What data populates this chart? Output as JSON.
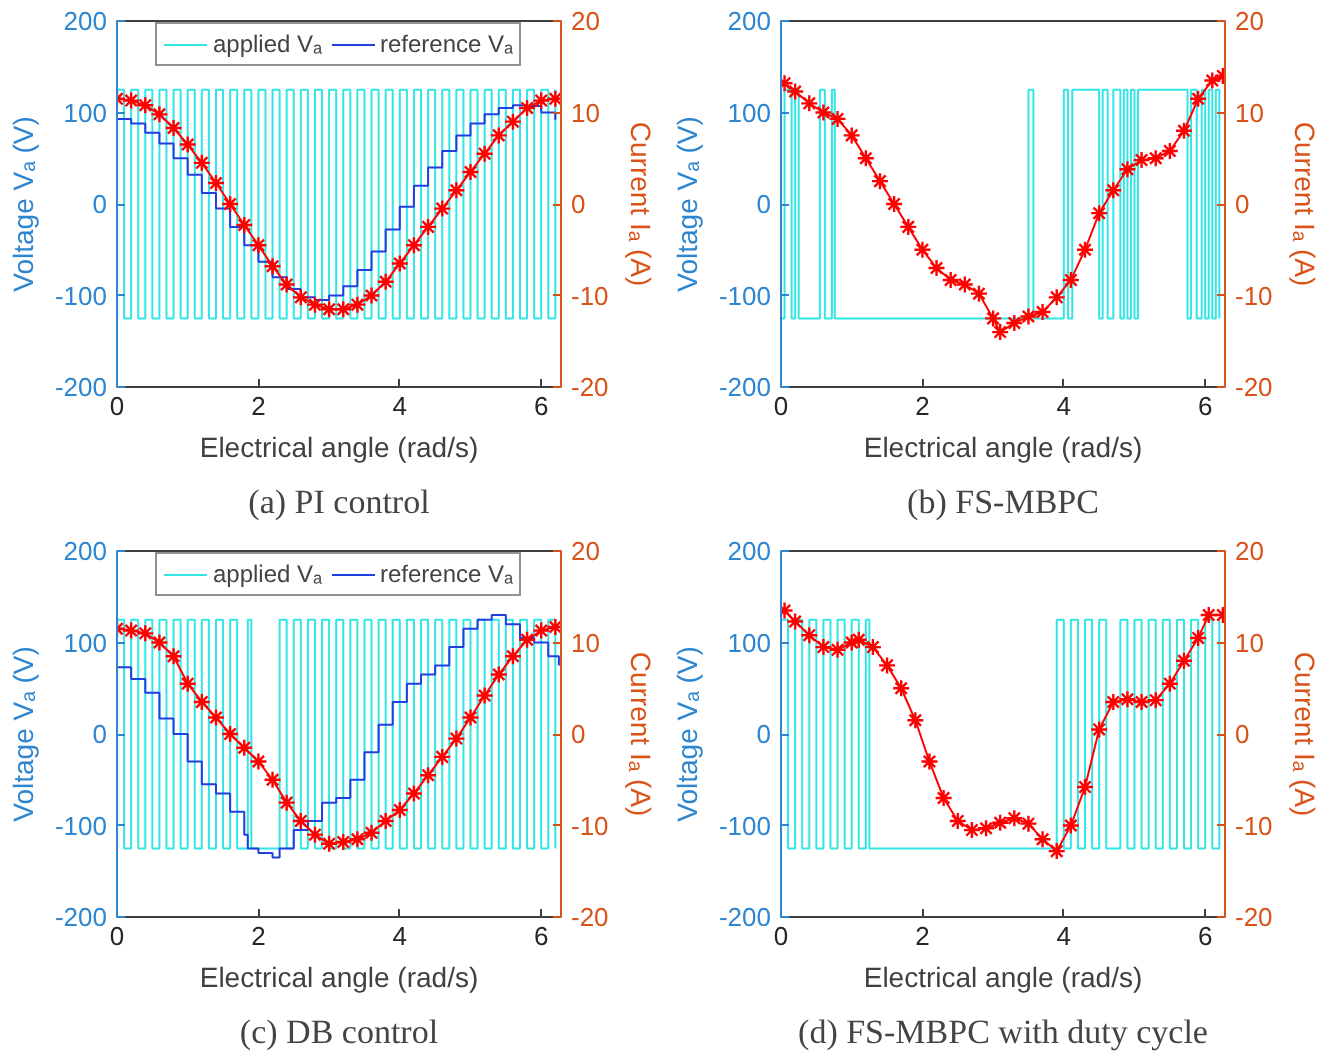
{
  "chart_data": [
    {
      "type": "line",
      "title": "(a) PI control",
      "xlabel": "Electrical angle (rad/s)",
      "ylabel": "Voltage Vₐ (V)",
      "y2label": "Current Iₐ (A)",
      "xlim": [
        0,
        6.28
      ],
      "xticks": [
        0,
        2,
        4,
        6
      ],
      "ylim": [
        -200,
        200
      ],
      "yticks": [
        -200,
        -100,
        0,
        100,
        200
      ],
      "y2lim": [
        -20,
        20
      ],
      "y2ticks": [
        -20,
        -10,
        0,
        10,
        20
      ],
      "legend": "top",
      "grid": false,
      "series": [
        {
          "name": "applied Vₐ",
          "type": "step",
          "color": "#33e6e6",
          "marker": "none",
          "x": [
            0,
            0.1,
            0.2,
            0.3,
            0.4,
            0.5,
            0.6,
            0.7,
            0.8,
            0.9,
            1.0,
            1.1,
            1.2,
            1.3,
            1.4,
            1.5,
            1.6,
            1.7,
            1.8,
            1.9,
            2.0,
            2.1,
            2.2,
            2.3,
            2.4,
            2.5,
            2.6,
            2.7,
            2.8,
            2.9,
            3.0,
            3.1,
            3.2,
            3.3,
            3.4,
            3.5,
            3.6,
            3.7,
            3.8,
            3.9,
            4.0,
            4.1,
            4.2,
            4.3,
            4.4,
            4.5,
            4.6,
            4.7,
            4.8,
            4.9,
            5.0,
            5.1,
            5.2,
            5.3,
            5.4,
            5.5,
            5.6,
            5.7,
            5.8,
            5.9,
            6.0,
            6.1,
            6.2
          ],
          "values": [
            125,
            -125,
            125,
            -125,
            125,
            -125,
            125,
            -125,
            125,
            -125,
            125,
            -125,
            125,
            -125,
            125,
            -125,
            125,
            -125,
            125,
            -125,
            125,
            -125,
            125,
            -125,
            125,
            -125,
            125,
            -125,
            125,
            -125,
            125,
            -125,
            125,
            -125,
            125,
            -125,
            125,
            -125,
            125,
            -125,
            125,
            -125,
            125,
            -125,
            125,
            -125,
            125,
            -125,
            125,
            -125,
            125,
            -125,
            125,
            -125,
            125,
            -125,
            125,
            -125,
            125,
            -125,
            125,
            -125,
            125
          ]
        },
        {
          "name": "reference Vₐ",
          "type": "step",
          "color": "#1f3fe0",
          "marker": "none",
          "x": [
            0,
            0.2,
            0.4,
            0.6,
            0.8,
            1.0,
            1.2,
            1.4,
            1.6,
            1.8,
            2.0,
            2.2,
            2.4,
            2.6,
            2.8,
            3.0,
            3.2,
            3.4,
            3.6,
            3.8,
            4.0,
            4.2,
            4.4,
            4.6,
            4.8,
            5.0,
            5.2,
            5.4,
            5.6,
            5.8,
            6.0,
            6.2
          ],
          "values": [
            93,
            88,
            78,
            66,
            50,
            32,
            12,
            -5,
            -25,
            -45,
            -63,
            -80,
            -93,
            -102,
            -105,
            -100,
            -90,
            -72,
            -52,
            -28,
            -3,
            20,
            40,
            58,
            75,
            88,
            98,
            105,
            108,
            107,
            100,
            92
          ]
        },
        {
          "axis": "y2",
          "color": "#ff0000",
          "marker": "cross",
          "line_style": "solid",
          "x": [
            0,
            0.2,
            0.4,
            0.6,
            0.8,
            1.0,
            1.2,
            1.4,
            1.6,
            1.8,
            2.0,
            2.2,
            2.4,
            2.6,
            2.8,
            3.0,
            3.2,
            3.4,
            3.6,
            3.8,
            4.0,
            4.2,
            4.4,
            4.6,
            4.8,
            5.0,
            5.2,
            5.4,
            5.6,
            5.8,
            6.0,
            6.2
          ],
          "values": [
            11.5,
            11.3,
            10.8,
            9.8,
            8.3,
            6.5,
            4.5,
            2.3,
            0,
            -2.3,
            -4.5,
            -6.8,
            -8.8,
            -10.2,
            -11,
            -11.5,
            -11.5,
            -11,
            -10,
            -8.5,
            -6.5,
            -4.5,
            -2.5,
            -0.5,
            1.5,
            3.5,
            5.5,
            7.5,
            9,
            10.5,
            11.3,
            11.5
          ]
        }
      ]
    },
    {
      "type": "line",
      "title": "(b) FS-MBPC",
      "xlabel": "Electrical angle (rad/s)",
      "ylabel": "Voltage Vₐ (V)",
      "y2label": "Current Iₐ (A)",
      "xlim": [
        0,
        6.28
      ],
      "xticks": [
        0,
        2,
        4,
        6
      ],
      "ylim": [
        -200,
        200
      ],
      "yticks": [
        -200,
        -100,
        0,
        100,
        200
      ],
      "y2lim": [
        -20,
        20
      ],
      "y2ticks": [
        -20,
        -10,
        0,
        10,
        20
      ],
      "legend": false,
      "grid": false,
      "series": [
        {
          "type": "step",
          "color": "#33e6e6",
          "marker": "none",
          "x": [
            0,
            0.05,
            0.15,
            0.2,
            0.25,
            0.55,
            0.62,
            0.72,
            0.76,
            3.5,
            3.57,
            4.0,
            4.06,
            4.12,
            4.5,
            4.55,
            4.62,
            4.7,
            4.8,
            4.85,
            4.9,
            4.95,
            5.0,
            5.05,
            5.75,
            5.8,
            5.88,
            5.95,
            6.0,
            6.05,
            6.1,
            6.15,
            6.2
          ],
          "values": [
            -125,
            125,
            -125,
            125,
            -125,
            125,
            -125,
            125,
            -125,
            125,
            -125,
            125,
            -125,
            125,
            -125,
            125,
            -125,
            125,
            -125,
            125,
            -125,
            125,
            -125,
            125,
            -125,
            125,
            -125,
            125,
            -125,
            125,
            -125,
            125,
            -125
          ]
        },
        {
          "axis": "y2",
          "color": "#ff0000",
          "marker": "cross",
          "line_style": "solid",
          "x": [
            0.05,
            0.2,
            0.4,
            0.6,
            0.8,
            1.0,
            1.2,
            1.4,
            1.6,
            1.8,
            2.0,
            2.2,
            2.4,
            2.6,
            2.8,
            3.0,
            3.1,
            3.3,
            3.5,
            3.7,
            3.9,
            4.1,
            4.3,
            4.5,
            4.7,
            4.9,
            5.1,
            5.3,
            5.5,
            5.7,
            5.9,
            6.1,
            6.25
          ],
          "values": [
            13.2,
            12.3,
            11,
            10,
            9.3,
            7.5,
            5,
            2.5,
            0,
            -2.5,
            -5,
            -7,
            -8.3,
            -8.8,
            -9.8,
            -12.5,
            -14,
            -13,
            -12.3,
            -11.8,
            -10.2,
            -8.3,
            -5,
            -1,
            1.5,
            3.8,
            4.8,
            5,
            5.8,
            8,
            11.5,
            13.5,
            14
          ]
        }
      ]
    },
    {
      "type": "line",
      "title": "(c) DB control",
      "xlabel": "Electrical angle (rad/s)",
      "ylabel": "Voltage Vₐ (V)",
      "y2label": "Current Iₐ (A)",
      "xlim": [
        0,
        6.28
      ],
      "xticks": [
        0,
        2,
        4,
        6
      ],
      "ylim": [
        -200,
        200
      ],
      "yticks": [
        -200,
        -100,
        0,
        100,
        200
      ],
      "y2lim": [
        -20,
        20
      ],
      "y2ticks": [
        -20,
        -10,
        0,
        10,
        20
      ],
      "legend": "top",
      "grid": false,
      "series": [
        {
          "name": "applied Vₐ",
          "type": "step",
          "color": "#33e6e6",
          "marker": "none",
          "x": [
            0,
            0.1,
            0.2,
            0.3,
            0.4,
            0.5,
            0.6,
            0.7,
            0.8,
            0.9,
            1.0,
            1.1,
            1.2,
            1.3,
            1.4,
            1.5,
            1.6,
            1.7,
            1.85,
            1.9,
            2.3,
            2.4,
            2.5,
            2.6,
            2.7,
            2.8,
            2.9,
            3.0,
            3.1,
            3.2,
            3.3,
            3.4,
            3.5,
            3.6,
            3.7,
            3.8,
            3.9,
            4.0,
            4.1,
            4.2,
            4.3,
            4.4,
            4.5,
            4.6,
            4.7,
            4.8,
            4.9,
            5.0,
            5.1,
            5.2,
            5.3,
            5.4,
            5.5,
            5.6,
            5.7,
            5.8,
            5.9,
            6.0,
            6.1,
            6.2
          ],
          "values": [
            125,
            -125,
            125,
            -125,
            125,
            -125,
            125,
            -125,
            125,
            -125,
            125,
            -125,
            125,
            -125,
            125,
            -125,
            125,
            -125,
            125,
            -125,
            125,
            -125,
            125,
            -125,
            125,
            -125,
            125,
            -125,
            125,
            -125,
            125,
            -125,
            125,
            -125,
            125,
            -125,
            125,
            -125,
            125,
            -125,
            125,
            -125,
            125,
            -125,
            125,
            -125,
            125,
            -125,
            125,
            -125,
            125,
            -125,
            125,
            -125,
            125,
            -125,
            125,
            -125,
            125,
            -125
          ]
        },
        {
          "name": "reference Vₐ",
          "type": "step",
          "color": "#1f3fe0",
          "marker": "none",
          "x": [
            0,
            0.2,
            0.4,
            0.6,
            0.8,
            1.0,
            1.2,
            1.4,
            1.6,
            1.8,
            1.85,
            2.0,
            2.2,
            2.3,
            2.5,
            2.7,
            2.9,
            3.1,
            3.3,
            3.5,
            3.7,
            3.9,
            4.1,
            4.3,
            4.5,
            4.7,
            4.9,
            5.1,
            5.3,
            5.5,
            5.7,
            5.9,
            6.1,
            6.25
          ],
          "values": [
            73,
            60,
            45,
            17,
            0,
            -30,
            -55,
            -65,
            -85,
            -110,
            -125,
            -130,
            -135,
            -125,
            -105,
            -95,
            -75,
            -70,
            -50,
            -20,
            10,
            35,
            55,
            65,
            75,
            95,
            115,
            125,
            130,
            120,
            105,
            100,
            85,
            75
          ]
        },
        {
          "axis": "y2",
          "color": "#ff0000",
          "marker": "cross",
          "line_style": "solid",
          "x": [
            0,
            0.2,
            0.4,
            0.6,
            0.8,
            1.0,
            1.2,
            1.4,
            1.6,
            1.8,
            2.0,
            2.2,
            2.4,
            2.6,
            2.8,
            3.0,
            3.2,
            3.4,
            3.6,
            3.8,
            4.0,
            4.2,
            4.4,
            4.6,
            4.8,
            5.0,
            5.2,
            5.4,
            5.6,
            5.8,
            6.0,
            6.2
          ],
          "values": [
            11.5,
            11.3,
            11,
            10,
            8.5,
            5.5,
            3.5,
            1.8,
            0,
            -1.5,
            -3,
            -5,
            -7.5,
            -9.5,
            -11,
            -12,
            -11.8,
            -11.5,
            -10.8,
            -9.5,
            -8.3,
            -6.5,
            -4.5,
            -2.5,
            -0.5,
            1.8,
            4.2,
            6.5,
            8.5,
            10.3,
            11.3,
            11.7
          ]
        }
      ]
    },
    {
      "type": "line",
      "title": "(d) FS-MBPC with duty cycle",
      "xlabel": "Electrical angle (rad/s)",
      "ylabel": "Voltage Vₐ (V)",
      "y2label": "Current Iₐ (A)",
      "xlim": [
        0,
        6.28
      ],
      "xticks": [
        0,
        2,
        4,
        6
      ],
      "ylim": [
        -200,
        200
      ],
      "yticks": [
        -200,
        -100,
        0,
        100,
        200
      ],
      "y2lim": [
        -20,
        20
      ],
      "y2ticks": [
        -20,
        -10,
        0,
        10,
        20
      ],
      "legend": false,
      "grid": false,
      "series": [
        {
          "type": "step",
          "color": "#33e6e6",
          "marker": "none",
          "x": [
            0,
            0.1,
            0.2,
            0.3,
            0.4,
            0.5,
            0.6,
            0.7,
            0.8,
            0.9,
            1.0,
            1.1,
            1.2,
            1.25,
            3.9,
            4.0,
            4.1,
            4.2,
            4.3,
            4.4,
            4.5,
            4.6,
            4.8,
            4.9,
            5.0,
            5.1,
            5.2,
            5.3,
            5.4,
            5.5,
            5.6,
            5.7,
            5.8,
            5.9,
            6.0,
            6.1,
            6.2
          ],
          "values": [
            125,
            -125,
            125,
            -125,
            125,
            -125,
            125,
            -125,
            125,
            -125,
            125,
            -125,
            125,
            -125,
            125,
            -125,
            125,
            -125,
            125,
            -125,
            125,
            -125,
            125,
            -125,
            125,
            -125,
            125,
            -125,
            125,
            -125,
            125,
            -125,
            125,
            -125,
            125,
            -125,
            125
          ]
        },
        {
          "axis": "y2",
          "color": "#ff0000",
          "marker": "cross",
          "line_style": "solid",
          "x": [
            0.05,
            0.2,
            0.4,
            0.6,
            0.8,
            1.0,
            1.1,
            1.3,
            1.5,
            1.7,
            1.9,
            2.1,
            2.3,
            2.5,
            2.7,
            2.9,
            3.1,
            3.3,
            3.5,
            3.7,
            3.9,
            4.1,
            4.3,
            4.5,
            4.7,
            4.9,
            5.1,
            5.3,
            5.5,
            5.7,
            5.9,
            6.05,
            6.25
          ],
          "values": [
            13.5,
            12.3,
            10.8,
            9.5,
            9.2,
            10,
            10.3,
            9.5,
            7.5,
            5,
            1.5,
            -3,
            -7,
            -9.5,
            -10.5,
            -10.3,
            -9.7,
            -9.2,
            -9.8,
            -11.5,
            -12.8,
            -10,
            -5.8,
            0.5,
            3.5,
            3.8,
            3.5,
            3.7,
            5.5,
            8,
            10.5,
            13,
            13
          ]
        }
      ]
    }
  ]
}
